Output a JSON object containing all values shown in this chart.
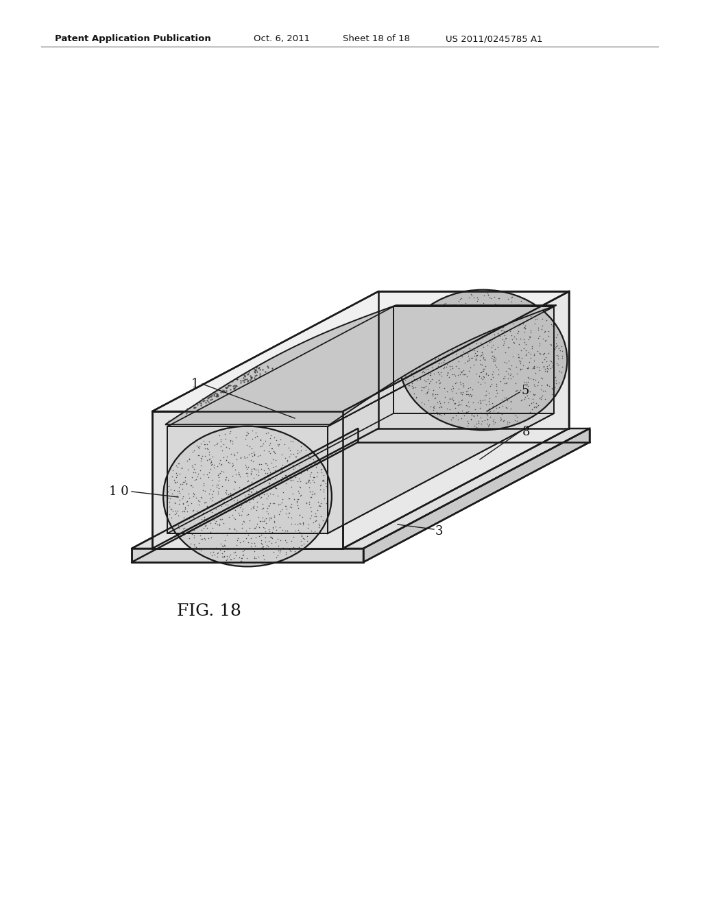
{
  "title_line1": "Patent Application Publication",
  "title_line2": "Oct. 6, 2011",
  "title_line3": "Sheet 18 of 18",
  "title_line4": "US 2011/0245785 A1",
  "fig_label": "FIG. 18",
  "background_color": "#ffffff",
  "line_color": "#1a1a1a",
  "lw": 1.8
}
